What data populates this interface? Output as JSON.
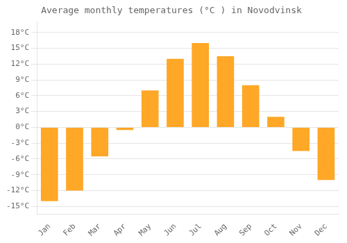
{
  "chart_data": {
    "type": "bar",
    "title": "Average monthly temperatures (°C ) in Novodvinsk",
    "categories": [
      "Jan",
      "Feb",
      "Mar",
      "Apr",
      "May",
      "Jun",
      "Jul",
      "Aug",
      "Sep",
      "Oct",
      "Nov",
      "Dec"
    ],
    "values": [
      -14,
      -12,
      -5.5,
      -0.5,
      7,
      13,
      16,
      13.5,
      8,
      2,
      -4.5,
      -10
    ],
    "color": "#FFA726",
    "ylim": [
      -16.5,
      20
    ],
    "yticks": [
      {
        "value": -15,
        "label": "-15°C"
      },
      {
        "value": -12,
        "label": "-12°C"
      },
      {
        "value": -9,
        "label": "-9°C"
      },
      {
        "value": -6,
        "label": "-6°C"
      },
      {
        "value": -3,
        "label": "-3°C"
      },
      {
        "value": 0,
        "label": "0°C"
      },
      {
        "value": 3,
        "label": "3°C"
      },
      {
        "value": 6,
        "label": "6°C"
      },
      {
        "value": 9,
        "label": "9°C"
      },
      {
        "value": 12,
        "label": "12°C"
      },
      {
        "value": 15,
        "label": "15°C"
      },
      {
        "value": 18,
        "label": "18°C"
      }
    ],
    "grid": true
  }
}
